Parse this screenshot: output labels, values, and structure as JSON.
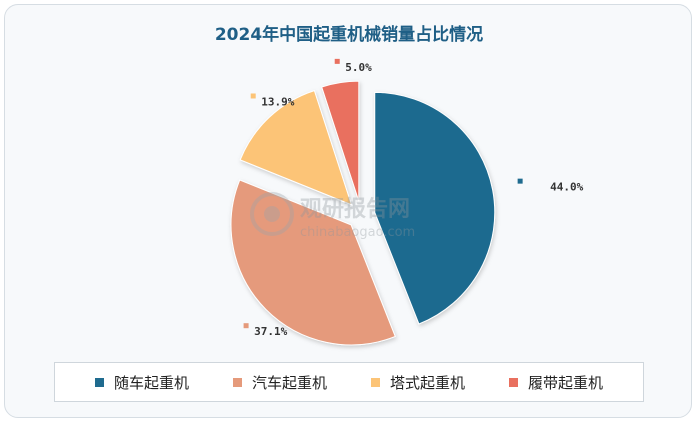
{
  "chart_data": {
    "type": "pie",
    "title": "2024年中国起重机械销量占比情况",
    "categories": [
      "随车起重机",
      "汽车起重机",
      "塔式起重机",
      "履带起重机"
    ],
    "values": [
      44.0,
      37.1,
      13.9,
      5.0
    ],
    "labels": [
      "44.0%",
      "37.1%",
      "13.9%",
      "5.0%"
    ],
    "colors": [
      "#1f6b8f",
      "#e59a7b",
      "#fcc477",
      "#e9705f"
    ],
    "legend": "bottom"
  },
  "watermark": {
    "cn": "观研报告网",
    "en": "chinabaogao.com"
  }
}
